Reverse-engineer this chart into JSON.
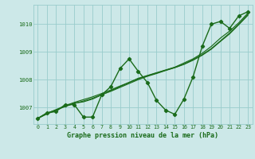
{
  "hours": [
    0,
    1,
    2,
    3,
    4,
    5,
    6,
    7,
    8,
    9,
    10,
    11,
    12,
    13,
    14,
    15,
    16,
    17,
    18,
    19,
    20,
    21,
    22,
    23
  ],
  "pressure": [
    1006.6,
    1006.8,
    1006.85,
    1007.1,
    1007.1,
    1006.65,
    1006.65,
    1007.45,
    1007.75,
    1008.4,
    1008.75,
    1008.3,
    1007.9,
    1007.25,
    1006.9,
    1006.75,
    1007.3,
    1008.1,
    1009.2,
    1010.0,
    1010.1,
    1009.85,
    1010.3,
    1010.45
  ],
  "smooth1": [
    1006.6,
    1006.8,
    1006.9,
    1007.05,
    1007.15,
    1007.2,
    1007.3,
    1007.45,
    1007.6,
    1007.75,
    1007.9,
    1008.05,
    1008.15,
    1008.25,
    1008.35,
    1008.45,
    1008.6,
    1008.75,
    1008.95,
    1009.2,
    1009.5,
    1009.75,
    1010.05,
    1010.4
  ],
  "smooth2": [
    1006.6,
    1006.78,
    1006.92,
    1007.06,
    1007.18,
    1007.28,
    1007.38,
    1007.5,
    1007.63,
    1007.77,
    1007.9,
    1008.03,
    1008.14,
    1008.24,
    1008.34,
    1008.44,
    1008.56,
    1008.72,
    1008.9,
    1009.12,
    1009.4,
    1009.68,
    1010.0,
    1010.35
  ],
  "smooth3": [
    1006.6,
    1006.76,
    1006.9,
    1007.03,
    1007.14,
    1007.23,
    1007.33,
    1007.46,
    1007.58,
    1007.72,
    1007.86,
    1008.0,
    1008.12,
    1008.22,
    1008.33,
    1008.43,
    1008.55,
    1008.7,
    1008.88,
    1009.1,
    1009.38,
    1009.65,
    1009.98,
    1010.32
  ],
  "bg_color": "#cce8e8",
  "line_color": "#1a6b1a",
  "grid_color": "#99cccc",
  "axis_color": "#1a6b1a",
  "xlabel": "Graphe pression niveau de la mer (hPa)",
  "ylim": [
    1006.4,
    1010.7
  ],
  "yticks": [
    1007,
    1008,
    1009,
    1010
  ],
  "xticks": [
    0,
    1,
    2,
    3,
    4,
    5,
    6,
    7,
    8,
    9,
    10,
    11,
    12,
    13,
    14,
    15,
    16,
    17,
    18,
    19,
    20,
    21,
    22,
    23
  ],
  "marker": "D",
  "markersize": 2.2,
  "linewidth": 1.0,
  "smooth_linewidth": 0.85
}
